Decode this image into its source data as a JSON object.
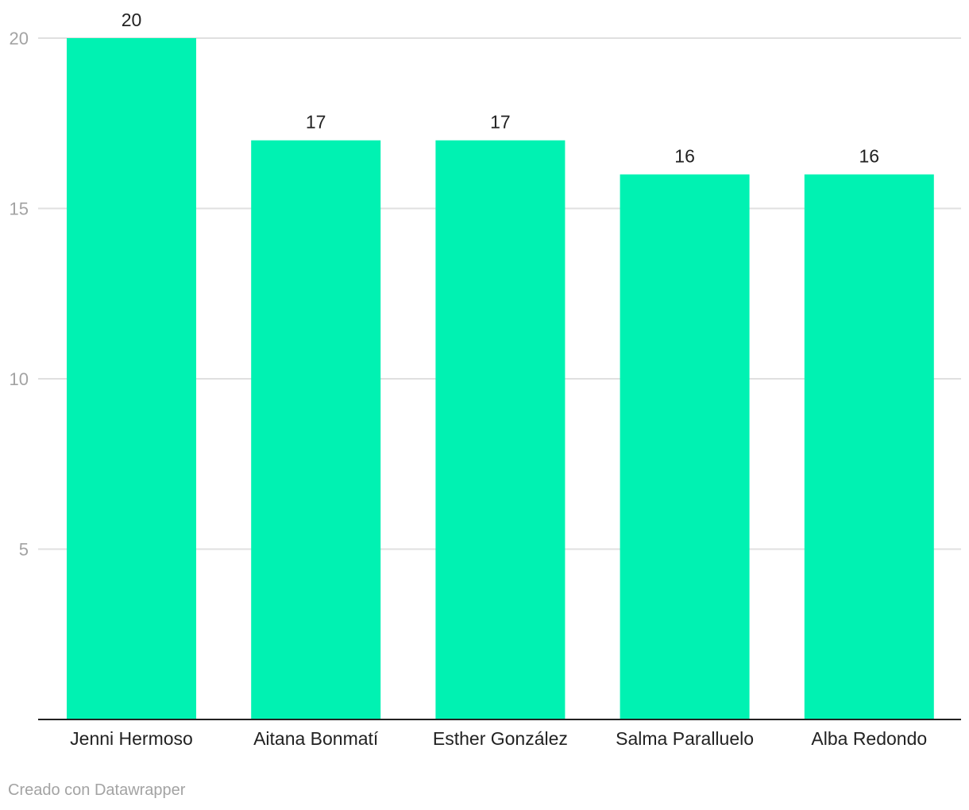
{
  "chart_data": {
    "type": "bar",
    "categories": [
      "Jenni Hermoso",
      "Aitana Bonmatí",
      "Esther González",
      "Salma Paralluelo",
      "Alba Redondo"
    ],
    "values": [
      20,
      17,
      17,
      16,
      16
    ],
    "ylim": [
      0,
      20
    ],
    "yticks": [
      5,
      10,
      15,
      20
    ],
    "grid": true,
    "bar_color": "#00f2b2",
    "data_labels": true
  },
  "footer": {
    "credit": "Creado con Datawrapper"
  }
}
